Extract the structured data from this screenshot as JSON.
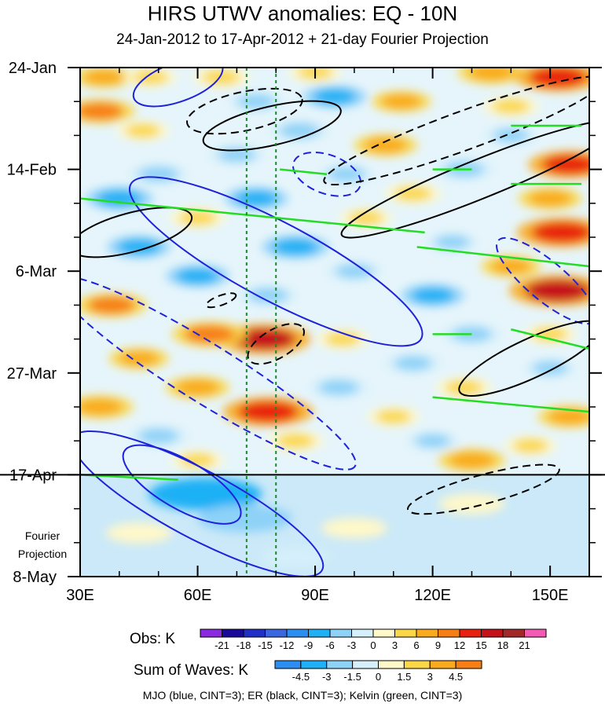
{
  "chart_data": {
    "type": "heatmap",
    "title": "HIRS UTWV anomalies: EQ - 10N",
    "subtitle": "24-Jan-2012 to 17-Apr-2012 + 21-day Fourier Projection",
    "x_range": [
      30,
      160
    ],
    "x_ticks": [
      {
        "label": "30E",
        "value": 30
      },
      {
        "label": "60E",
        "value": 60
      },
      {
        "label": "90E",
        "value": 90
      },
      {
        "label": "120E",
        "value": 120
      },
      {
        "label": "150E",
        "value": 150
      }
    ],
    "y_range_days": [
      0,
      105
    ],
    "y_ticks": [
      {
        "label": "24-Jan",
        "day": 0
      },
      {
        "label": "14-Feb",
        "day": 21
      },
      {
        "label": "6-Mar",
        "day": 42
      },
      {
        "label": "27-Mar",
        "day": 63
      },
      {
        "label": "17-Apr",
        "day": 84
      },
      {
        "label": "8-May",
        "day": 105
      }
    ],
    "projection_start_day": 84,
    "projection_label_line1": "Fourier",
    "projection_label_line2": "Projection",
    "reference_longitudes": [
      72.5,
      80
    ],
    "obs_colorbar": {
      "label": "Obs: K",
      "levels": [
        "-21",
        "-18",
        "-15",
        "-12",
        "-9",
        "-6",
        "-3",
        "0",
        "3",
        "6",
        "9",
        "12",
        "15",
        "18",
        "21"
      ],
      "colors": [
        "#8a2be2",
        "#1a0a9a",
        "#1f2fc8",
        "#3a66e0",
        "#2b8ef0",
        "#1fb0f5",
        "#8ed2f8",
        "#d5f0fb",
        "#fff8c9",
        "#fbd748",
        "#f9ab1d",
        "#f67e14",
        "#e82110",
        "#c4111a",
        "#a3282a",
        "#f45bb5"
      ]
    },
    "waves_colorbar": {
      "label": "Sum of Waves: K",
      "levels": [
        "-4.5",
        "-3",
        "-1.5",
        "0",
        "1.5",
        "3",
        "4.5"
      ],
      "colors": [
        "#2b8ef0",
        "#1fb0f5",
        "#8ed2f8",
        "#d5f0fb",
        "#fff8c9",
        "#fbd748",
        "#f9ab1d",
        "#f67e14"
      ]
    },
    "footer": "MJO (blue, CINT=3); ER (black, CINT=3); Kelvin (green, CINT=3)",
    "anomaly_features": [
      {
        "lon": 36,
        "day": 2,
        "v": 6
      },
      {
        "lon": 48,
        "day": 2,
        "v": 4
      },
      {
        "lon": 66,
        "day": 2,
        "v": 5
      },
      {
        "lon": 90,
        "day": 1,
        "v": 4
      },
      {
        "lon": 135,
        "day": 1,
        "v": 8
      },
      {
        "lon": 152,
        "day": 2,
        "v": 13
      },
      {
        "lon": 35,
        "day": 9,
        "v": 9
      },
      {
        "lon": 75,
        "day": 7,
        "v": -5
      },
      {
        "lon": 95,
        "day": 6,
        "v": -7
      },
      {
        "lon": 112,
        "day": 7,
        "v": 6
      },
      {
        "lon": 140,
        "day": 8,
        "v": 5
      },
      {
        "lon": 46,
        "day": 13,
        "v": 4
      },
      {
        "lon": 86,
        "day": 13,
        "v": -6
      },
      {
        "lon": 108,
        "day": 16,
        "v": 7
      },
      {
        "lon": 140,
        "day": 14,
        "v": -4
      },
      {
        "lon": 70,
        "day": 18,
        "v": -5
      },
      {
        "lon": 155,
        "day": 20,
        "v": 12
      },
      {
        "lon": 50,
        "day": 22,
        "v": -6
      },
      {
        "lon": 98,
        "day": 22,
        "v": -5
      },
      {
        "lon": 128,
        "day": 21,
        "v": -6
      },
      {
        "lon": 40,
        "day": 27,
        "v": -8
      },
      {
        "lon": 75,
        "day": 27,
        "v": -7
      },
      {
        "lon": 115,
        "day": 26,
        "v": 5
      },
      {
        "lon": 150,
        "day": 27,
        "v": 7
      },
      {
        "lon": 60,
        "day": 31,
        "v": 5
      },
      {
        "lon": 103,
        "day": 31,
        "v": 4
      },
      {
        "lon": 153,
        "day": 34,
        "v": 14
      },
      {
        "lon": 45,
        "day": 37,
        "v": -7
      },
      {
        "lon": 85,
        "day": 37,
        "v": -8
      },
      {
        "lon": 125,
        "day": 36,
        "v": -4
      },
      {
        "lon": 60,
        "day": 43,
        "v": -7
      },
      {
        "lon": 100,
        "day": 42,
        "v": -5
      },
      {
        "lon": 140,
        "day": 41,
        "v": 6
      },
      {
        "lon": 152,
        "day": 46,
        "v": 16
      },
      {
        "lon": 38,
        "day": 49,
        "v": 9
      },
      {
        "lon": 78,
        "day": 47,
        "v": -6
      },
      {
        "lon": 120,
        "day": 47,
        "v": -7
      },
      {
        "lon": 77,
        "day": 56,
        "v": 15
      },
      {
        "lon": 63,
        "day": 55,
        "v": 10
      },
      {
        "lon": 97,
        "day": 56,
        "v": 4
      },
      {
        "lon": 130,
        "day": 55,
        "v": -6
      },
      {
        "lon": 150,
        "day": 55,
        "v": 4
      },
      {
        "lon": 45,
        "day": 60,
        "v": 6
      },
      {
        "lon": 115,
        "day": 61,
        "v": -5
      },
      {
        "lon": 150,
        "day": 62,
        "v": -4
      },
      {
        "lon": 60,
        "day": 66,
        "v": 7
      },
      {
        "lon": 96,
        "day": 66,
        "v": -6
      },
      {
        "lon": 128,
        "day": 66,
        "v": 5
      },
      {
        "lon": 35,
        "day": 70,
        "v": 8
      },
      {
        "lon": 78,
        "day": 71,
        "v": 14
      },
      {
        "lon": 110,
        "day": 72,
        "v": 4
      },
      {
        "lon": 155,
        "day": 72,
        "v": 7
      },
      {
        "lon": 50,
        "day": 76,
        "v": -6
      },
      {
        "lon": 85,
        "day": 77,
        "v": 5
      },
      {
        "lon": 120,
        "day": 77,
        "v": -4
      },
      {
        "lon": 145,
        "day": 78,
        "v": 4
      },
      {
        "lon": 60,
        "day": 81,
        "v": 4
      },
      {
        "lon": 130,
        "day": 81,
        "v": 8
      }
    ],
    "projection_features": [
      {
        "lon": 62,
        "day": 88,
        "v": -3.5
      },
      {
        "lon": 72,
        "day": 93,
        "v": -2.5
      },
      {
        "lon": 45,
        "day": 96,
        "v": 1
      },
      {
        "lon": 100,
        "day": 95,
        "v": 1
      },
      {
        "lon": 130,
        "day": 90,
        "v": 1
      },
      {
        "lon": 85,
        "day": 101,
        "v": -1
      }
    ],
    "mjo_contours": [
      {
        "lon": 55,
        "day": 3,
        "rlon": 12,
        "rday": 4,
        "angle": -20,
        "dashed": false
      },
      {
        "lon": 80,
        "day": 40,
        "rlon": 42,
        "rday": 8,
        "angle": 28,
        "dashed": false
      },
      {
        "lon": 62,
        "day": 63,
        "rlon": 45,
        "rday": 6,
        "angle": 32,
        "dashed": true
      },
      {
        "lon": 93,
        "day": 22,
        "rlon": 9,
        "rday": 4,
        "angle": 20,
        "dashed": true
      },
      {
        "lon": 149,
        "day": 44,
        "rlon": 16,
        "rday": 4,
        "angle": 40,
        "dashed": true
      },
      {
        "lon": 56,
        "day": 86,
        "rlon": 17,
        "rday": 5,
        "angle": 30,
        "dashed": false
      },
      {
        "lon": 60,
        "day": 90,
        "rlon": 36,
        "rday": 7,
        "angle": 28,
        "dashed": false
      }
    ],
    "er_contours": [
      {
        "lon": 72,
        "day": 9,
        "rlon": 15,
        "rday": 4,
        "angle": -12,
        "dashed": true
      },
      {
        "lon": 79,
        "day": 12,
        "rlon": 18,
        "rday": 4,
        "angle": -13,
        "dashed": false
      },
      {
        "lon": 128,
        "day": 13,
        "rlon": 38,
        "rday": 4,
        "angle": -20,
        "dashed": true
      },
      {
        "lon": 132,
        "day": 23,
        "rlon": 38,
        "rday": 4,
        "angle": -22,
        "dashed": false
      },
      {
        "lon": 43,
        "day": 34,
        "rlon": 16,
        "rday": 4,
        "angle": -15,
        "dashed": false
      },
      {
        "lon": 66,
        "day": 48,
        "rlon": 4,
        "rday": 1,
        "angle": -20,
        "dashed": true
      },
      {
        "lon": 80,
        "day": 57,
        "rlon": 8,
        "rday": 3,
        "angle": -30,
        "dashed": true
      },
      {
        "lon": 145,
        "day": 60,
        "rlon": 20,
        "rday": 4,
        "angle": -25,
        "dashed": false
      },
      {
        "lon": 133,
        "day": 87,
        "rlon": 20,
        "rday": 3,
        "angle": -15,
        "dashed": true
      }
    ],
    "kelvin_segments": [
      {
        "lon1": 30,
        "day1": 27,
        "lon2": 118,
        "day2": 34
      },
      {
        "lon1": 116,
        "day1": 37,
        "lon2": 160,
        "day2": 41
      },
      {
        "lon1": 81,
        "day1": 21,
        "lon2": 93,
        "day2": 22
      },
      {
        "lon1": 120,
        "day1": 21,
        "lon2": 130,
        "day2": 21
      },
      {
        "lon1": 140,
        "day1": 12,
        "lon2": 158,
        "day2": 12
      },
      {
        "lon1": 140,
        "day1": 24,
        "lon2": 158,
        "day2": 24
      },
      {
        "lon1": 120,
        "day1": 55,
        "lon2": 130,
        "day2": 55
      },
      {
        "lon1": 140,
        "day1": 54,
        "lon2": 160,
        "day2": 58
      },
      {
        "lon1": 120,
        "day1": 68,
        "lon2": 160,
        "day2": 71
      },
      {
        "lon1": 30,
        "day1": 84,
        "lon2": 55,
        "day2": 85
      }
    ]
  }
}
